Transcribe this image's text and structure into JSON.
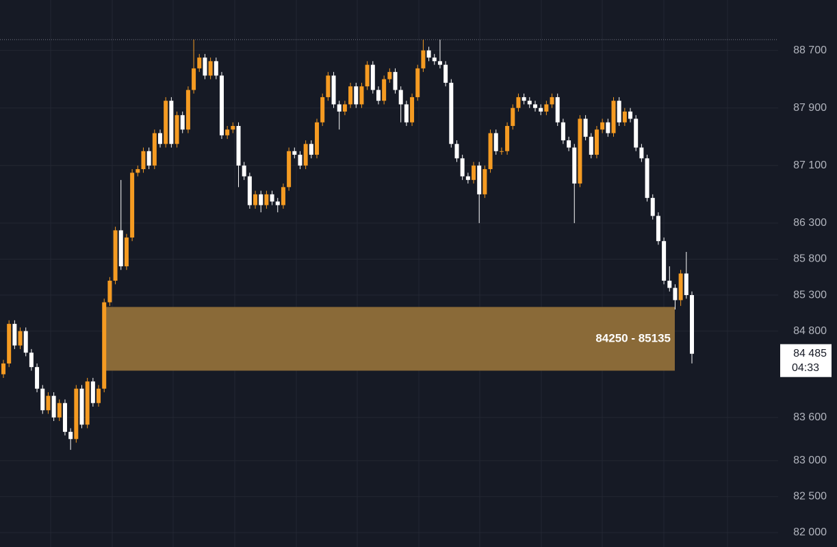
{
  "chart_data": {
    "type": "candlestick",
    "ylim": [
      81800,
      89400
    ],
    "yticks": [
      {
        "value": 88700,
        "label": "88 700"
      },
      {
        "value": 87900,
        "label": "87 900"
      },
      {
        "value": 87100,
        "label": "87 100"
      },
      {
        "value": 86300,
        "label": "86 300"
      },
      {
        "value": 85800,
        "label": "85 800"
      },
      {
        "value": 85300,
        "label": "85 300"
      },
      {
        "value": 84800,
        "label": "84 800"
      },
      {
        "value": 83600,
        "label": "83 600"
      },
      {
        "value": 83000,
        "label": "83 000"
      },
      {
        "value": 82500,
        "label": "82 500"
      },
      {
        "value": 82000,
        "label": "82 000"
      }
    ],
    "grid": true,
    "up_color": "#f59b22",
    "down_color": "#ffffff",
    "zone": {
      "low": 84250,
      "high": 85135,
      "label": "84250 - 85135",
      "color": "#8a6a38"
    },
    "last_price": {
      "value": 84485,
      "label": "84 485"
    },
    "countdown": "04:33",
    "ohlc": [
      [
        84200,
        84400,
        84150,
        84350
      ],
      [
        84350,
        84950,
        84300,
        84900
      ],
      [
        84900,
        84950,
        84550,
        84600
      ],
      [
        84600,
        84850,
        84550,
        84800
      ],
      [
        84800,
        84850,
        84450,
        84500
      ],
      [
        84500,
        84550,
        84250,
        84300
      ],
      [
        84300,
        84350,
        83950,
        84000
      ],
      [
        84000,
        84050,
        83650,
        83700
      ],
      [
        83700,
        83950,
        83650,
        83900
      ],
      [
        83900,
        83950,
        83550,
        83600
      ],
      [
        83600,
        83850,
        83550,
        83800
      ],
      [
        83800,
        83850,
        83350,
        83400
      ],
      [
        83400,
        83450,
        83150,
        83300
      ],
      [
        83300,
        84050,
        83250,
        84000
      ],
      [
        84000,
        84050,
        83450,
        83500
      ],
      [
        83500,
        84150,
        83450,
        84100
      ],
      [
        84100,
        84150,
        83750,
        83800
      ],
      [
        83800,
        84050,
        83750,
        84000
      ],
      [
        84000,
        85250,
        83950,
        85200
      ],
      [
        85200,
        85550,
        85150,
        85500
      ],
      [
        85500,
        86250,
        85450,
        86200
      ],
      [
        86200,
        86900,
        85650,
        85700
      ],
      [
        85700,
        86150,
        85650,
        86100
      ],
      [
        86100,
        87050,
        86050,
        87000
      ],
      [
        87000,
        87100,
        86950,
        87050
      ],
      [
        87050,
        87350,
        87000,
        87300
      ],
      [
        87300,
        87350,
        87050,
        87100
      ],
      [
        87100,
        87600,
        87050,
        87550
      ],
      [
        87550,
        87600,
        87350,
        87400
      ],
      [
        87400,
        88050,
        87350,
        88000
      ],
      [
        88000,
        88050,
        87350,
        87400
      ],
      [
        87400,
        87850,
        87350,
        87800
      ],
      [
        87800,
        87850,
        87550,
        87600
      ],
      [
        87600,
        88200,
        87550,
        88150
      ],
      [
        88150,
        88850,
        88100,
        88450
      ],
      [
        88450,
        88650,
        88400,
        88600
      ],
      [
        88600,
        88650,
        88300,
        88350
      ],
      [
        88350,
        88600,
        88300,
        88550
      ],
      [
        88550,
        88600,
        88300,
        88350
      ],
      [
        88350,
        88400,
        87470,
        87520
      ],
      [
        87520,
        87650,
        87470,
        87600
      ],
      [
        87600,
        87700,
        87550,
        87650
      ],
      [
        87650,
        87700,
        86800,
        87100
      ],
      [
        87100,
        87150,
        86900,
        86950
      ],
      [
        86950,
        87000,
        86500,
        86550
      ],
      [
        86550,
        86750,
        86500,
        86700
      ],
      [
        86700,
        86750,
        86450,
        86550
      ],
      [
        86550,
        86750,
        86500,
        86700
      ],
      [
        86700,
        86750,
        86550,
        86600
      ],
      [
        86600,
        86650,
        86450,
        86550
      ],
      [
        86550,
        86850,
        86500,
        86800
      ],
      [
        86800,
        87350,
        86750,
        87300
      ],
      [
        87300,
        87350,
        87200,
        87250
      ],
      [
        87250,
        87300,
        87050,
        87100
      ],
      [
        87100,
        87450,
        87050,
        87400
      ],
      [
        87400,
        87450,
        87200,
        87250
      ],
      [
        87250,
        87750,
        87200,
        87700
      ],
      [
        87700,
        88100,
        87650,
        88050
      ],
      [
        88050,
        88400,
        88000,
        88350
      ],
      [
        88350,
        88400,
        87900,
        87950
      ],
      [
        87950,
        88000,
        87600,
        87850
      ],
      [
        87850,
        88000,
        87800,
        87950
      ],
      [
        87950,
        88250,
        87900,
        88200
      ],
      [
        88200,
        88250,
        87900,
        87950
      ],
      [
        87950,
        88250,
        87900,
        88200
      ],
      [
        88200,
        88550,
        88150,
        88500
      ],
      [
        88500,
        88550,
        88100,
        88150
      ],
      [
        88150,
        88200,
        87950,
        88000
      ],
      [
        88000,
        88350,
        87950,
        88300
      ],
      [
        88300,
        88450,
        88250,
        88400
      ],
      [
        88400,
        88450,
        88100,
        88150
      ],
      [
        88150,
        88200,
        87700,
        87950
      ],
      [
        87950,
        88000,
        87650,
        87700
      ],
      [
        87700,
        88100,
        87650,
        88050
      ],
      [
        88050,
        88500,
        88000,
        88450
      ],
      [
        88450,
        88850,
        88400,
        88700
      ],
      [
        88700,
        88750,
        88550,
        88600
      ],
      [
        88600,
        88650,
        88500,
        88550
      ],
      [
        88550,
        88850,
        88450,
        88500
      ],
      [
        88500,
        88550,
        88200,
        88250
      ],
      [
        88250,
        88300,
        87350,
        87400
      ],
      [
        87400,
        87450,
        87150,
        87200
      ],
      [
        87200,
        87250,
        86900,
        86950
      ],
      [
        86950,
        87000,
        86850,
        86900
      ],
      [
        86900,
        87150,
        86850,
        87100
      ],
      [
        87100,
        87150,
        86300,
        86700
      ],
      [
        86700,
        87100,
        86650,
        87050
      ],
      [
        87050,
        87600,
        87000,
        87550
      ],
      [
        87550,
        87600,
        87250,
        87300
      ],
      [
        87300,
        87350,
        87250,
        87300
      ],
      [
        87300,
        87700,
        87250,
        87650
      ],
      [
        87650,
        87950,
        87600,
        87900
      ],
      [
        87900,
        88100,
        87850,
        88050
      ],
      [
        88050,
        88100,
        87950,
        88000
      ],
      [
        88000,
        88050,
        87900,
        87950
      ],
      [
        87950,
        88000,
        87850,
        87900
      ],
      [
        87900,
        87950,
        87800,
        87850
      ],
      [
        87850,
        88000,
        87800,
        87950
      ],
      [
        87950,
        88100,
        87900,
        88050
      ],
      [
        88050,
        88100,
        87650,
        87700
      ],
      [
        87700,
        87750,
        87400,
        87450
      ],
      [
        87450,
        87500,
        87300,
        87350
      ],
      [
        87350,
        87400,
        86300,
        86850
      ],
      [
        86850,
        87800,
        86800,
        87750
      ],
      [
        87750,
        87800,
        87450,
        87500
      ],
      [
        87500,
        87550,
        87200,
        87250
      ],
      [
        87250,
        87650,
        87200,
        87600
      ],
      [
        87600,
        87750,
        87550,
        87700
      ],
      [
        87700,
        87750,
        87500,
        87550
      ],
      [
        87550,
        88050,
        87500,
        88000
      ],
      [
        88000,
        88050,
        87650,
        87700
      ],
      [
        87700,
        87900,
        87650,
        87850
      ],
      [
        87850,
        87900,
        87700,
        87750
      ],
      [
        87750,
        87800,
        87300,
        87350
      ],
      [
        87350,
        87400,
        87150,
        87200
      ],
      [
        87200,
        87250,
        86600,
        86650
      ],
      [
        86650,
        86700,
        86350,
        86400
      ],
      [
        86400,
        86450,
        86000,
        86050
      ],
      [
        86050,
        86100,
        85450,
        85500
      ],
      [
        85500,
        85700,
        85350,
        85400
      ],
      [
        85400,
        85450,
        85100,
        85230
      ],
      [
        85230,
        85650,
        85150,
        85600
      ],
      [
        85600,
        85900,
        85250,
        85300
      ],
      [
        85300,
        85350,
        84350,
        84485
      ]
    ]
  }
}
